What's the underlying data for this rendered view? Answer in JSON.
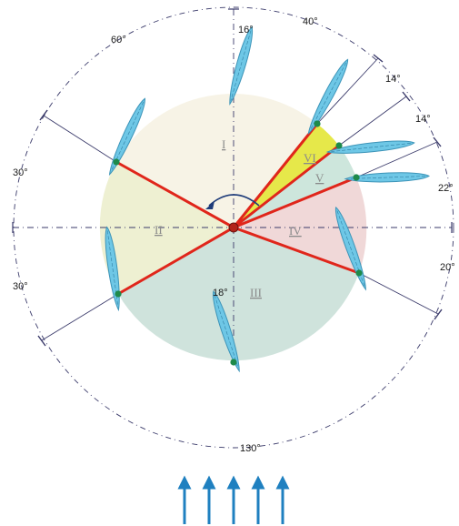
{
  "angle_labels": {
    "top": "16°",
    "top_right": "40°",
    "top_left": "60°",
    "upper_right_a": "14°",
    "upper_right_b": "14°",
    "right_upper": "22°",
    "right_lower": "20°",
    "left_upper": "30°",
    "left_lower": "30°",
    "bottom_blade": "18°",
    "bottom": "130°"
  },
  "sectors": [
    "I",
    "II",
    "III",
    "IV",
    "V",
    "VI"
  ],
  "colors": {
    "sector_I": "#f7f3e6",
    "sector_II": "#eef0d2",
    "sector_III": "#cfe3dc",
    "sector_IV": "#f0d8d8",
    "sector_V": "#cde6dc",
    "sector_VI": "#e6e84a",
    "blade_fill": "#6ec7e6",
    "blade_stroke": "#3d94b8",
    "spoke": "#e0261b",
    "hinge": "#1e8a4a",
    "guide_line": "#3a3a6a",
    "flow_arrow": "#1f80c0"
  },
  "flow_arrows_count": 5
}
